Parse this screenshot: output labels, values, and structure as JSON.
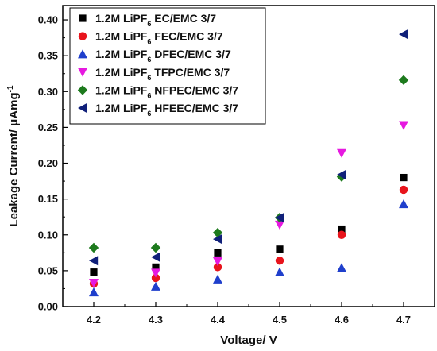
{
  "chart_data": {
    "type": "scatter",
    "xlabel": "Voltage/ V",
    "ylabel_main": "Leakage Current/ μAmg",
    "ylabel_sup": "-1",
    "xlim": [
      4.15,
      4.75
    ],
    "ylim": [
      0.0,
      0.42
    ],
    "xticks": [
      "4.2",
      "4.3",
      "4.4",
      "4.5",
      "4.6",
      "4.7"
    ],
    "yticks": [
      "0.00",
      "0.05",
      "0.10",
      "0.15",
      "0.20",
      "0.25",
      "0.30",
      "0.35",
      "0.40"
    ],
    "legend_position": "top-left",
    "x": [
      4.2,
      4.3,
      4.4,
      4.5,
      4.6,
      4.7
    ],
    "series": [
      {
        "name_main": "1.2M LiPF",
        "name_sub": "6",
        "name_tail": " EC/EMC 3/7",
        "marker": "square",
        "color": "#000000",
        "values": [
          0.048,
          0.055,
          0.075,
          0.08,
          0.108,
          0.18
        ]
      },
      {
        "name_main": "1.2M LiPF",
        "name_sub": "6",
        "name_tail": " FEC/EMC 3/7",
        "marker": "circle",
        "color": "#e8141c",
        "values": [
          0.032,
          0.04,
          0.055,
          0.064,
          0.1,
          0.163
        ]
      },
      {
        "name_main": "1.2M LiPF",
        "name_sub": "6",
        "name_tail": " DFEC/EMC 3/7",
        "marker": "triangle-up",
        "color": "#1f3fcc",
        "values": [
          0.02,
          0.028,
          0.038,
          0.048,
          0.054,
          0.143
        ]
      },
      {
        "name_main": "1.2M LiPF",
        "name_sub": "6",
        "name_tail": " TFPC/EMC 3/7",
        "marker": "triangle-down",
        "color": "#e619e0",
        "values": [
          0.033,
          0.047,
          0.063,
          0.114,
          0.214,
          0.253
        ]
      },
      {
        "name_main": "1.2M LiPF",
        "name_sub": "6",
        "name_tail": " NFPEC/EMC 3/7",
        "marker": "diamond",
        "color": "#1d7a1d",
        "values": [
          0.082,
          0.082,
          0.103,
          0.124,
          0.181,
          0.316
        ]
      },
      {
        "name_main": "1.2M LiPF",
        "name_sub": "6",
        "name_tail": " HFEEC/EMC 3/7",
        "marker": "triangle-left",
        "color": "#10207a",
        "values": [
          0.064,
          0.069,
          0.094,
          0.124,
          0.184,
          0.38
        ]
      }
    ]
  }
}
